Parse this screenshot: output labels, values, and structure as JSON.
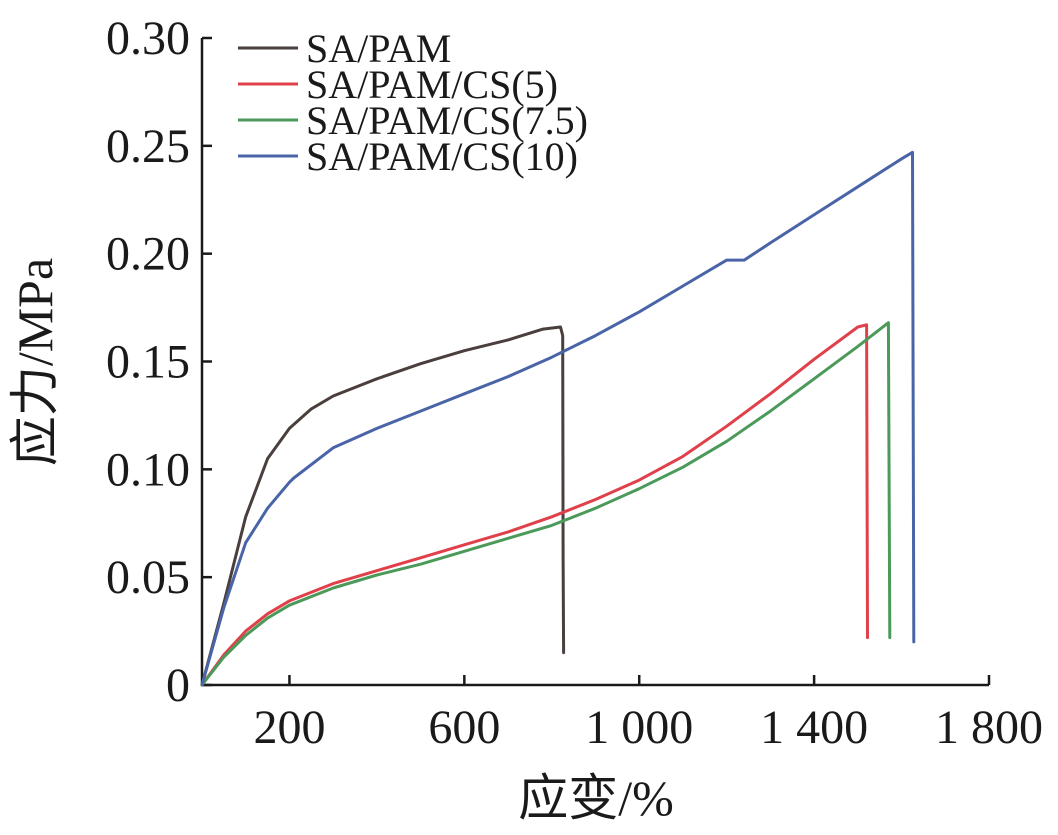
{
  "chart_data": {
    "type": "line",
    "xlabel": "应变/%",
    "ylabel": "应力/MPa",
    "xlim": [
      0,
      1800
    ],
    "ylim": [
      0,
      0.3
    ],
    "grid": false,
    "legend_position": "top-left",
    "x_ticks": [
      {
        "value": 200,
        "label": "200"
      },
      {
        "value": 600,
        "label": "600"
      },
      {
        "value": 1000,
        "label": "1 000"
      },
      {
        "value": 1400,
        "label": "1 400"
      },
      {
        "value": 1800,
        "label": "1 800"
      }
    ],
    "y_ticks": [
      {
        "value": 0,
        "label": "0"
      },
      {
        "value": 0.05,
        "label": "0.05"
      },
      {
        "value": 0.1,
        "label": "0.10"
      },
      {
        "value": 0.15,
        "label": "0.15"
      },
      {
        "value": 0.2,
        "label": "0.20"
      },
      {
        "value": 0.25,
        "label": "0.25"
      },
      {
        "value": 0.3,
        "label": "0.30"
      }
    ],
    "series": [
      {
        "name": "SA/PAM",
        "color": "#4a3f3d",
        "x": [
          0,
          50,
          100,
          150,
          200,
          250,
          300,
          400,
          500,
          600,
          700,
          780,
          820,
          825,
          826,
          827
        ],
        "y": [
          0,
          0.038,
          0.078,
          0.105,
          0.119,
          0.128,
          0.134,
          0.142,
          0.149,
          0.155,
          0.16,
          0.165,
          0.166,
          0.162,
          0.06,
          0.015
        ]
      },
      {
        "name": "SA/PAM/CS(5)",
        "color": "#e0404a",
        "x": [
          0,
          50,
          100,
          150,
          200,
          300,
          400,
          500,
          600,
          700,
          800,
          900,
          1000,
          1100,
          1200,
          1300,
          1400,
          1500,
          1520,
          1522
        ],
        "y": [
          0,
          0.014,
          0.025,
          0.033,
          0.039,
          0.047,
          0.053,
          0.059,
          0.065,
          0.071,
          0.078,
          0.086,
          0.095,
          0.106,
          0.12,
          0.135,
          0.151,
          0.166,
          0.167,
          0.022
        ]
      },
      {
        "name": "SA/PAM/CS(7.5)",
        "color": "#4b9a5a",
        "x": [
          0,
          50,
          100,
          150,
          200,
          300,
          400,
          500,
          600,
          700,
          800,
          900,
          1000,
          1100,
          1200,
          1300,
          1400,
          1500,
          1570,
          1573
        ],
        "y": [
          0,
          0.013,
          0.023,
          0.031,
          0.037,
          0.045,
          0.051,
          0.056,
          0.062,
          0.068,
          0.074,
          0.082,
          0.091,
          0.101,
          0.113,
          0.127,
          0.142,
          0.157,
          0.168,
          0.022
        ]
      },
      {
        "name": "SA/PAM/CS(10)",
        "color": "#4a64a8",
        "x": [
          0,
          50,
          100,
          150,
          200,
          210,
          300,
          400,
          500,
          600,
          700,
          800,
          900,
          1000,
          1100,
          1200,
          1240,
          1300,
          1400,
          1500,
          1600,
          1625,
          1628
        ],
        "y": [
          0,
          0.036,
          0.066,
          0.082,
          0.094,
          0.096,
          0.11,
          0.119,
          0.127,
          0.135,
          0.143,
          0.152,
          0.162,
          0.173,
          0.185,
          0.197,
          0.197,
          0.205,
          0.218,
          0.231,
          0.244,
          0.247,
          0.02
        ]
      }
    ]
  }
}
